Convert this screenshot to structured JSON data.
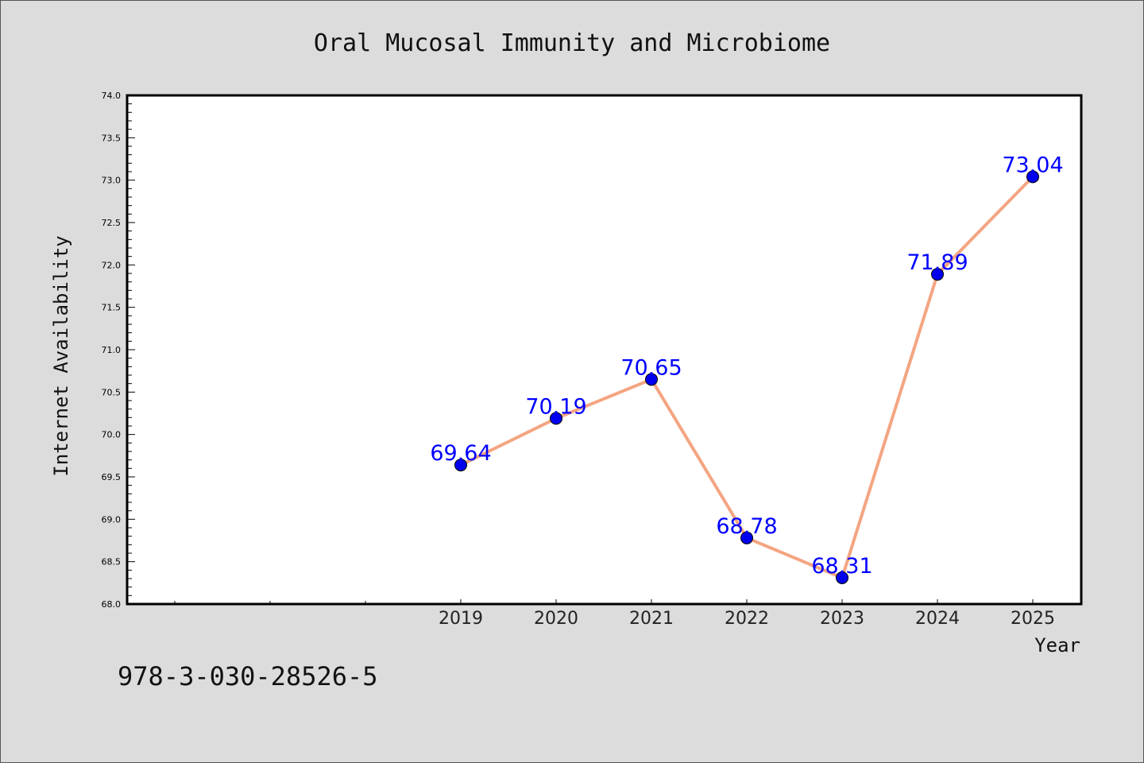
{
  "chart_data": {
    "type": "line",
    "title": "Oral Mucosal Immunity and Microbiome",
    "xlabel": "Year",
    "ylabel": "Internet Availability",
    "categories": [
      "2019",
      "2020",
      "2021",
      "2022",
      "2023",
      "2024",
      "2025"
    ],
    "series": [
      {
        "values": [
          69.64,
          70.19,
          70.65,
          68.78,
          68.31,
          71.89,
          73.04
        ]
      }
    ],
    "data_labels": [
      "69.64",
      "70.19",
      "70.65",
      "68.78",
      "68.31",
      "71.89",
      "73.04"
    ],
    "ylim": [
      68.0,
      74.0
    ],
    "yticks": [
      "68.0",
      "68.5",
      "69.0",
      "69.5",
      "70.0",
      "70.5",
      "71.0",
      "71.5",
      "72.0",
      "72.5",
      "73.0",
      "73.5",
      "74.0"
    ],
    "grid": false,
    "legend": "none",
    "colors": {
      "line": "#f4a582",
      "marker": "#0000ee",
      "label": "#0000ff",
      "background": "#dcdcdc",
      "plot_area": "#ffffff"
    }
  },
  "footer": {
    "code": "978-3-030-28526-5"
  }
}
